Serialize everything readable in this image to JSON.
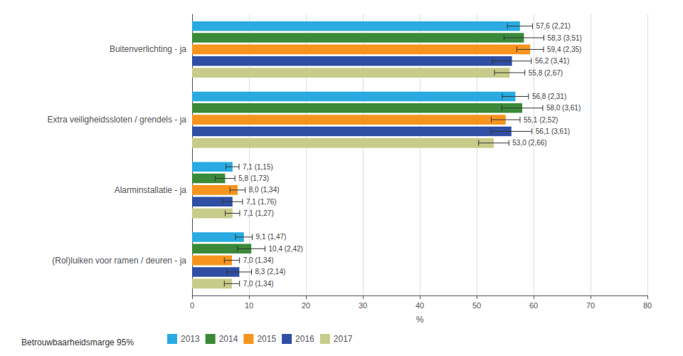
{
  "chart_data": {
    "type": "bar",
    "orientation": "horizontal",
    "categories": [
      "Buitenverlichting - ja",
      "Extra veiligheidssloten / grendels - ja",
      "Alarminstallatie - ja",
      "(Rol)luiken voor ramen / deuren - ja"
    ],
    "series": [
      {
        "name": "2013",
        "color": "#29ABE2",
        "values": [
          57.6,
          56.8,
          7.1,
          9.1
        ],
        "errors": [
          2.21,
          2.31,
          1.15,
          1.47
        ],
        "value_labels": [
          "57,6 (2,21)",
          "56,8 (2,31)",
          "7,1 (1,15)",
          "9,1 (1,47)"
        ]
      },
      {
        "name": "2014",
        "color": "#3A8A3A",
        "values": [
          58.3,
          58.0,
          5.8,
          10.4
        ],
        "errors": [
          3.51,
          3.61,
          1.73,
          2.42
        ],
        "value_labels": [
          "58,3 (3,51)",
          "58,0 (3,61)",
          "5,8 (1,73)",
          "10,4 (2,42)"
        ]
      },
      {
        "name": "2015",
        "color": "#F7941D",
        "values": [
          59.4,
          55.1,
          8.0,
          7.0
        ],
        "errors": [
          2.35,
          2.52,
          1.34,
          1.34
        ],
        "value_labels": [
          "59,4 (2,35)",
          "55,1 (2,52)",
          "8,0 (1,34)",
          "7,0 (1,34)"
        ]
      },
      {
        "name": "2016",
        "color": "#2E4FA3",
        "values": [
          56.2,
          56.1,
          7.1,
          8.3
        ],
        "errors": [
          3.41,
          3.61,
          1.76,
          2.14
        ],
        "value_labels": [
          "56,2 (3,41)",
          "56,1 (3,61)",
          "7,1 (1,76)",
          "8,3 (2,14)"
        ]
      },
      {
        "name": "2017",
        "color": "#C8CC8A",
        "values": [
          55.8,
          53.0,
          7.1,
          7.0
        ],
        "errors": [
          2.67,
          2.66,
          1.27,
          1.34
        ],
        "value_labels": [
          "55,8 (2,67)",
          "53,0 (2,66)",
          "7,1 (1,27)",
          "7,0 (1,34)"
        ]
      }
    ],
    "xlabel": "%",
    "xlim": [
      0,
      80
    ],
    "xticks": [
      0,
      10,
      20,
      30,
      40,
      50,
      60,
      70,
      80
    ],
    "grid": true,
    "legend": "bottom",
    "legend_title": "Betrouwbaarheidsmarge 95%",
    "data_labels": true
  }
}
